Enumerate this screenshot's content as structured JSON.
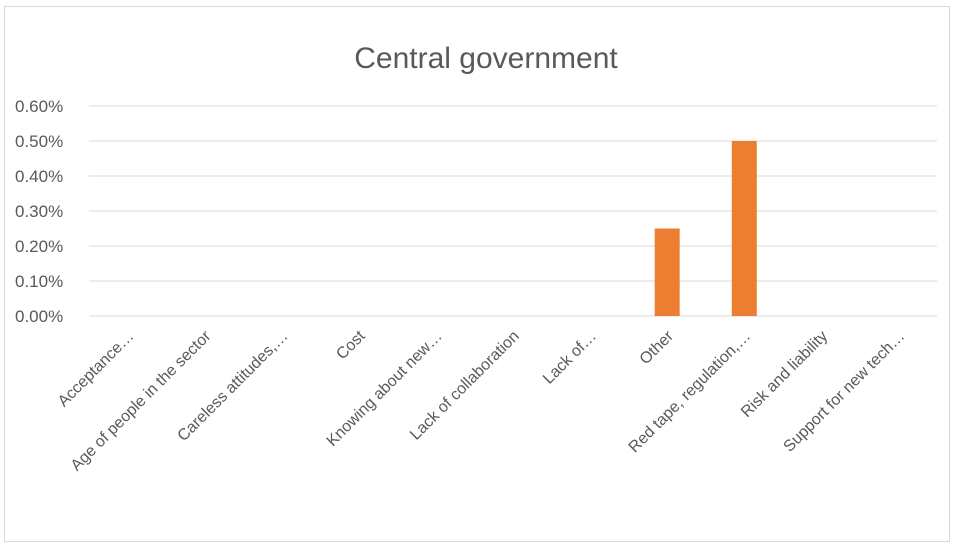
{
  "chart_data": {
    "type": "bar",
    "title": "Central government",
    "categories": [
      "Acceptance…",
      "Age of people in the sector",
      "Careless attitudes,…",
      "Cost",
      "Knowing about new…",
      "Lack of collaboration",
      "Lack of…",
      "Other",
      "Red tape, regulation,…",
      "Risk and liability",
      "Support for new tech…"
    ],
    "values": [
      0,
      0,
      0,
      0,
      0,
      0,
      0,
      0.25,
      0.5,
      0,
      0
    ],
    "yticks": [
      "0.00%",
      "0.10%",
      "0.20%",
      "0.30%",
      "0.40%",
      "0.50%",
      "0.60%"
    ],
    "ylim": [
      0,
      0.6
    ],
    "grid": true,
    "legend": "none",
    "bar_color": "#ed7d31",
    "grid_color": "#d9d9d9"
  }
}
